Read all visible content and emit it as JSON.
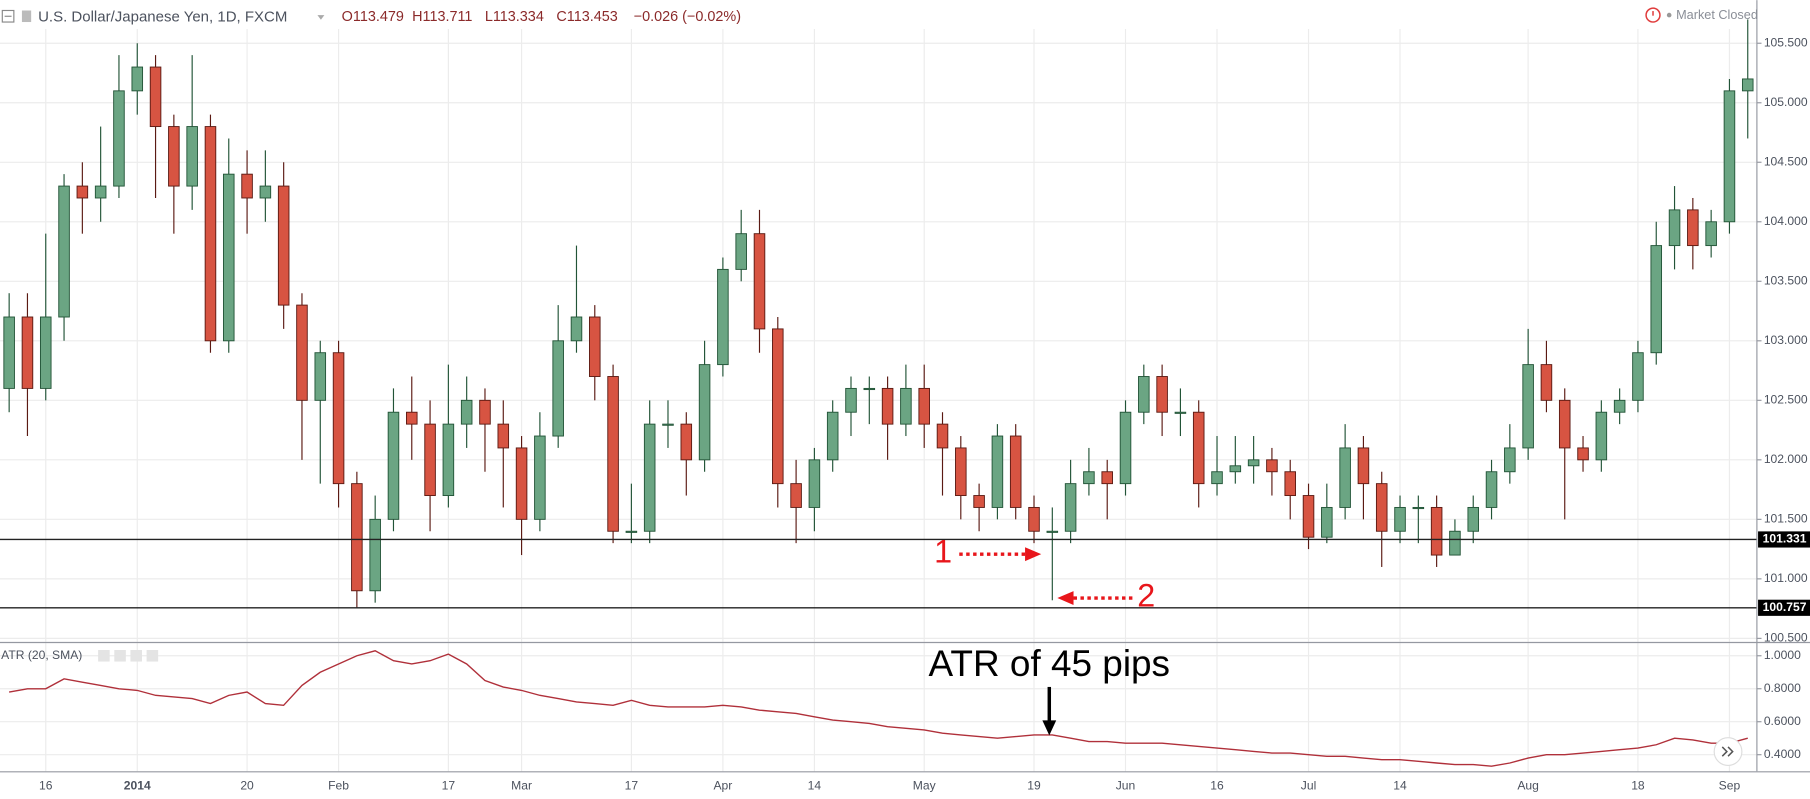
{
  "header": {
    "title": "U.S. Dollar/Japanese Yen, 1D, FXCM",
    "open": "O113.479",
    "high": "H113.711",
    "low": "L113.334",
    "close": "C113.453",
    "change": "−0.026 (−0.02%)",
    "status": "Market Closed"
  },
  "chart_data": [
    {
      "type": "candlestick",
      "categories": [
        null,
        null,
        "16",
        null,
        null,
        null,
        null,
        "2014",
        null,
        null,
        null,
        null,
        null,
        "20",
        null,
        null,
        null,
        null,
        "Feb",
        null,
        null,
        null,
        null,
        null,
        "17",
        null,
        null,
        null,
        "Mar",
        null,
        null,
        null,
        null,
        null,
        "17",
        null,
        null,
        null,
        null,
        "Apr",
        null,
        null,
        null,
        null,
        "14",
        null,
        null,
        null,
        null,
        null,
        "May",
        null,
        null,
        null,
        null,
        null,
        "19",
        null,
        null,
        null,
        null,
        "Jun",
        null,
        null,
        null,
        null,
        "16",
        null,
        null,
        null,
        null,
        "Jul",
        null,
        null,
        null,
        null,
        "14",
        null,
        null,
        null,
        null,
        null,
        null,
        "Aug",
        null,
        null,
        null,
        null,
        null,
        "18",
        null,
        null,
        null,
        null,
        "Sep",
        null
      ],
      "open": [
        102.6,
        103.2,
        102.6,
        103.2,
        104.3,
        104.2,
        104.3,
        105.1,
        105.3,
        104.8,
        104.3,
        104.8,
        103.0,
        104.4,
        104.2,
        104.3,
        103.3,
        102.5,
        102.9,
        101.8,
        100.9,
        101.5,
        102.4,
        102.3,
        101.7,
        102.3,
        102.5,
        102.3,
        102.1,
        101.5,
        102.2,
        103.0,
        103.2,
        102.7,
        101.4,
        101.4,
        102.3,
        102.3,
        102.0,
        102.8,
        103.6,
        103.9,
        103.1,
        101.8,
        101.6,
        102.0,
        102.4,
        102.6,
        102.6,
        102.3,
        102.6,
        102.3,
        102.1,
        101.7,
        101.6,
        102.2,
        101.6,
        101.4,
        101.4,
        101.8,
        101.9,
        101.8,
        102.4,
        102.7,
        102.4,
        102.4,
        101.8,
        101.9,
        101.95,
        102.0,
        101.9,
        101.7,
        101.35,
        101.6,
        102.1,
        101.8,
        101.4,
        101.6,
        101.6,
        101.2,
        101.4,
        101.6,
        101.9,
        102.1,
        102.8,
        102.5,
        102.1,
        102.0,
        102.4,
        102.5,
        102.9,
        103.8,
        104.1,
        103.8,
        104.0,
        105.1
      ],
      "high": [
        103.4,
        103.4,
        103.9,
        104.4,
        104.5,
        104.8,
        105.4,
        105.5,
        105.4,
        104.9,
        105.4,
        104.9,
        104.7,
        104.6,
        104.6,
        104.5,
        103.4,
        103.0,
        103.0,
        101.9,
        101.7,
        102.6,
        102.7,
        102.5,
        102.8,
        102.7,
        102.6,
        102.5,
        102.2,
        102.4,
        103.3,
        103.8,
        103.3,
        102.8,
        101.8,
        102.5,
        102.5,
        102.4,
        103.0,
        103.7,
        104.1,
        104.1,
        103.2,
        102.0,
        102.1,
        102.5,
        102.7,
        102.7,
        102.7,
        102.8,
        102.8,
        102.4,
        102.2,
        101.8,
        102.3,
        102.3,
        101.7,
        101.6,
        102.0,
        102.1,
        102.0,
        102.5,
        102.8,
        102.8,
        102.6,
        102.5,
        102.2,
        102.2,
        102.2,
        102.1,
        102.0,
        101.8,
        101.8,
        102.3,
        102.2,
        101.9,
        101.7,
        101.7,
        101.7,
        101.5,
        101.7,
        102.0,
        102.3,
        103.1,
        103.0,
        102.6,
        102.2,
        102.5,
        102.6,
        103.0,
        104.0,
        104.3,
        104.2,
        104.1,
        105.2,
        105.7
      ],
      "low": [
        102.4,
        102.2,
        102.5,
        103.0,
        103.9,
        104.0,
        104.2,
        104.9,
        104.2,
        103.9,
        104.1,
        102.9,
        102.9,
        103.9,
        104.0,
        103.1,
        102.0,
        101.8,
        101.6,
        100.76,
        100.8,
        101.4,
        102.0,
        101.4,
        101.6,
        102.1,
        101.9,
        101.6,
        101.2,
        101.4,
        102.1,
        102.9,
        102.5,
        101.3,
        101.3,
        101.3,
        102.1,
        101.7,
        101.9,
        102.7,
        103.5,
        102.9,
        101.6,
        101.3,
        101.4,
        101.9,
        102.2,
        102.3,
        102.0,
        102.2,
        102.1,
        101.7,
        101.5,
        101.4,
        101.5,
        101.5,
        101.3,
        100.82,
        101.3,
        101.7,
        101.5,
        101.7,
        102.3,
        102.2,
        102.2,
        101.6,
        101.7,
        101.8,
        101.8,
        101.7,
        101.5,
        101.25,
        101.3,
        101.5,
        101.5,
        101.1,
        101.3,
        101.3,
        101.1,
        101.2,
        101.3,
        101.5,
        101.8,
        102.0,
        102.4,
        101.5,
        101.9,
        101.9,
        102.3,
        102.4,
        102.8,
        103.6,
        103.6,
        103.7,
        103.9,
        104.7
      ],
      "close": [
        103.2,
        102.6,
        103.2,
        104.3,
        104.2,
        104.3,
        105.1,
        105.3,
        104.8,
        104.3,
        104.8,
        103.0,
        104.4,
        104.2,
        104.3,
        103.3,
        102.5,
        102.9,
        101.8,
        100.9,
        101.5,
        102.4,
        102.3,
        101.7,
        102.3,
        102.5,
        102.3,
        102.1,
        101.5,
        102.2,
        103.0,
        103.2,
        102.7,
        101.4,
        101.4,
        102.3,
        102.3,
        102.0,
        102.8,
        103.6,
        103.9,
        103.1,
        101.8,
        101.6,
        102.0,
        102.4,
        102.6,
        102.6,
        102.3,
        102.6,
        102.3,
        102.1,
        101.7,
        101.6,
        102.2,
        101.6,
        101.4,
        101.4,
        101.8,
        101.9,
        101.8,
        102.4,
        102.7,
        102.4,
        102.4,
        101.8,
        101.9,
        101.95,
        102.0,
        101.9,
        101.7,
        101.35,
        101.6,
        102.1,
        101.8,
        101.4,
        101.6,
        101.6,
        101.2,
        101.4,
        101.6,
        101.9,
        102.1,
        102.8,
        102.5,
        102.1,
        102.0,
        102.4,
        102.5,
        102.9,
        103.8,
        104.1,
        103.8,
        104.0,
        105.1,
        105.2
      ],
      "up_color": "#6ba583",
      "down_color": "#d75442",
      "up_border": "#225437",
      "down_border": "#5b1a13",
      "ylim": [
        100.48,
        105.62
      ],
      "yticks": [
        {
          "value": 100.5,
          "label": "100.500"
        },
        {
          "value": 101,
          "label": "101.000"
        },
        {
          "value": 101.5,
          "label": "101.500"
        },
        {
          "value": 102,
          "label": "102.000"
        },
        {
          "value": 102.5,
          "label": "102.500"
        },
        {
          "value": 103,
          "label": "103.000"
        },
        {
          "value": 103.5,
          "label": "103.500"
        },
        {
          "value": 104,
          "label": "104.000"
        },
        {
          "value": 104.5,
          "label": "104.500"
        },
        {
          "value": 105,
          "label": "105.000"
        },
        {
          "value": 105.5,
          "label": "105.500"
        }
      ],
      "hlines": [
        {
          "value": 101.331,
          "label": "101.331"
        },
        {
          "value": 100.757,
          "label": "100.757"
        }
      ],
      "annotations": [
        {
          "text": "1"
        },
        {
          "text": "2"
        }
      ],
      "grid": true
    },
    {
      "type": "line",
      "title": "ATR (20, SMA)",
      "color": "#b0303a",
      "values": [
        0.78,
        0.8,
        0.8,
        0.86,
        0.84,
        0.82,
        0.8,
        0.79,
        0.76,
        0.75,
        0.74,
        0.71,
        0.76,
        0.78,
        0.71,
        0.7,
        0.82,
        0.9,
        0.95,
        1.0,
        1.03,
        0.97,
        0.95,
        0.97,
        1.01,
        0.95,
        0.85,
        0.81,
        0.79,
        0.76,
        0.74,
        0.72,
        0.71,
        0.7,
        0.73,
        0.7,
        0.69,
        0.69,
        0.69,
        0.7,
        0.69,
        0.67,
        0.66,
        0.65,
        0.63,
        0.61,
        0.6,
        0.59,
        0.57,
        0.56,
        0.55,
        0.53,
        0.52,
        0.51,
        0.5,
        0.51,
        0.52,
        0.52,
        0.5,
        0.48,
        0.48,
        0.47,
        0.47,
        0.47,
        0.46,
        0.45,
        0.44,
        0.43,
        0.42,
        0.41,
        0.41,
        0.4,
        0.39,
        0.39,
        0.38,
        0.37,
        0.37,
        0.36,
        0.35,
        0.34,
        0.34,
        0.33,
        0.35,
        0.38,
        0.4,
        0.4,
        0.41,
        0.42,
        0.43,
        0.44,
        0.46,
        0.5,
        0.49,
        0.47,
        0.47,
        0.5
      ],
      "ylim": [
        0.3,
        1.07
      ],
      "yticks": [
        {
          "value": 0.4,
          "label": "0.4000"
        },
        {
          "value": 0.6,
          "label": "0.6000"
        },
        {
          "value": 0.8,
          "label": "0.8000"
        },
        {
          "value": 1,
          "label": "1.0000"
        }
      ],
      "annotations": [
        {
          "text": "ATR of 45 pips"
        }
      ],
      "grid": true
    }
  ]
}
